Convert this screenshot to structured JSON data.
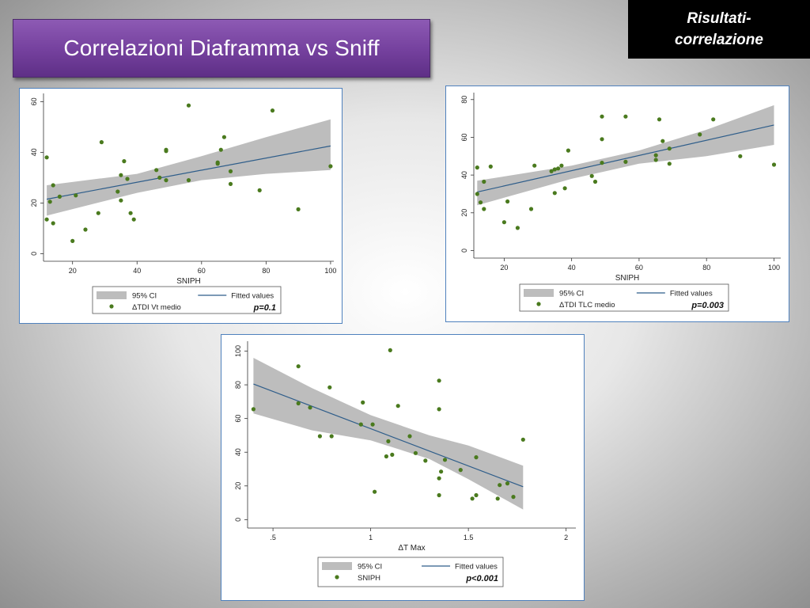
{
  "slide": {
    "title": "Correlazioni Diaframma vs Sniff",
    "corner_tag": "Risultati-correlazione"
  },
  "colors": {
    "point": "#4a7a1e",
    "fit_line": "#2e5d8a",
    "ci_band": "#bdbdbd",
    "panel_border": "#4f81bd",
    "title_banner": "#74409d"
  },
  "chart_data": [
    {
      "type": "scatter",
      "xlabel": "SNIPH",
      "ylabel": "",
      "xlim": [
        11,
        101
      ],
      "ylim": [
        -3,
        62
      ],
      "xticks": [
        20,
        40,
        60,
        80,
        100
      ],
      "yticks": [
        0,
        20,
        40,
        60
      ],
      "xtick_labels": [
        "20",
        "40",
        "60",
        "80",
        "100"
      ],
      "ytick_labels": [
        "0",
        "20",
        "40",
        "60"
      ],
      "grid": false,
      "legend": {
        "ci_label": "95% CI",
        "fit_label": "Fitted values",
        "point_label": "ΔTDI Vt medio",
        "pvalue": "p=0.1"
      },
      "fit": {
        "x": [
          12,
          100
        ],
        "y": [
          21.5,
          42.5
        ]
      },
      "ci_upper": [
        [
          12,
          27
        ],
        [
          40,
          31.5
        ],
        [
          60,
          38.5
        ],
        [
          80,
          46
        ],
        [
          100,
          53
        ]
      ],
      "ci_lower": [
        [
          12,
          15
        ],
        [
          40,
          24
        ],
        [
          60,
          29
        ],
        [
          80,
          31.5
        ],
        [
          100,
          33
        ]
      ],
      "points": [
        [
          12,
          38
        ],
        [
          12,
          13.5
        ],
        [
          13,
          20.5
        ],
        [
          14,
          27
        ],
        [
          14,
          12
        ],
        [
          16,
          22.5
        ],
        [
          20,
          5
        ],
        [
          21,
          23
        ],
        [
          24,
          9.5
        ],
        [
          28,
          16
        ],
        [
          29,
          44
        ],
        [
          34,
          24.5
        ],
        [
          35,
          31
        ],
        [
          35,
          21
        ],
        [
          36,
          36.5
        ],
        [
          37,
          29.5
        ],
        [
          38,
          16
        ],
        [
          39,
          13.5
        ],
        [
          46,
          33
        ],
        [
          47,
          30
        ],
        [
          49,
          29
        ],
        [
          49,
          40.5
        ],
        [
          49,
          41
        ],
        [
          56,
          58.5
        ],
        [
          56,
          29
        ],
        [
          65,
          36
        ],
        [
          65,
          35.5
        ],
        [
          66,
          41
        ],
        [
          67,
          46
        ],
        [
          69,
          32.5
        ],
        [
          69,
          27.5
        ],
        [
          78,
          25
        ],
        [
          82,
          56.5
        ],
        [
          90,
          17.5
        ],
        [
          100,
          34.5
        ]
      ]
    },
    {
      "type": "scatter",
      "xlabel": "SNIPH",
      "ylabel": "",
      "xlim": [
        11,
        102
      ],
      "ylim": [
        -4,
        82
      ],
      "xticks": [
        20,
        40,
        60,
        80,
        100
      ],
      "yticks": [
        0,
        20,
        40,
        60,
        80
      ],
      "xtick_labels": [
        "20",
        "40",
        "60",
        "80",
        "100"
      ],
      "ytick_labels": [
        "0",
        "20",
        "40",
        "60",
        "80"
      ],
      "grid": false,
      "legend": {
        "ci_label": "95% CI",
        "fit_label": "Fitted values",
        "point_label": "ΔTDI TLC medio",
        "pvalue": "p=0.003"
      },
      "fit": {
        "x": [
          12,
          100
        ],
        "y": [
          31,
          66.5
        ]
      },
      "ci_upper": [
        [
          12,
          37
        ],
        [
          40,
          45
        ],
        [
          60,
          53
        ],
        [
          80,
          64
        ],
        [
          100,
          77
        ]
      ],
      "ci_lower": [
        [
          12,
          24
        ],
        [
          40,
          38
        ],
        [
          60,
          46
        ],
        [
          80,
          50
        ],
        [
          100,
          56
        ]
      ],
      "points": [
        [
          12,
          44
        ],
        [
          12,
          30
        ],
        [
          13,
          25.5
        ],
        [
          14,
          22
        ],
        [
          14,
          36.5
        ],
        [
          16,
          44.5
        ],
        [
          20,
          15
        ],
        [
          21,
          26
        ],
        [
          24,
          12
        ],
        [
          28,
          22
        ],
        [
          29,
          45
        ],
        [
          34,
          42
        ],
        [
          35,
          43
        ],
        [
          35,
          30.5
        ],
        [
          36,
          43.5
        ],
        [
          37,
          45
        ],
        [
          38,
          33
        ],
        [
          39,
          53
        ],
        [
          46,
          39.5
        ],
        [
          47,
          36.5
        ],
        [
          49,
          46.5
        ],
        [
          49,
          59
        ],
        [
          49,
          71
        ],
        [
          56,
          47
        ],
        [
          56,
          71
        ],
        [
          65,
          50.5
        ],
        [
          65,
          48
        ],
        [
          66,
          69.5
        ],
        [
          67,
          58
        ],
        [
          69,
          54
        ],
        [
          69,
          46
        ],
        [
          78,
          61.5
        ],
        [
          82,
          69.5
        ],
        [
          90,
          50
        ],
        [
          100,
          45.5
        ]
      ]
    },
    {
      "type": "scatter",
      "xlabel": "ΔT Max",
      "ylabel": "",
      "xlim": [
        0.37,
        2.05
      ],
      "ylim": [
        -5,
        104
      ],
      "xticks": [
        0.5,
        1,
        1.5,
        2
      ],
      "yticks": [
        0,
        20,
        40,
        60,
        80,
        100
      ],
      "xtick_labels": [
        ".5",
        "1",
        "1.5",
        "2"
      ],
      "ytick_labels": [
        "0",
        "20",
        "40",
        "60",
        "80",
        "100"
      ],
      "grid": false,
      "legend": {
        "ci_label": "95% CI",
        "fit_label": "Fitted values",
        "point_label": "SNIPH",
        "pvalue": "p<0.001"
      },
      "fit": {
        "x": [
          0.4,
          1.78
        ],
        "y": [
          80.5,
          19.5
        ]
      },
      "ci_upper": [
        [
          0.4,
          96
        ],
        [
          0.7,
          78
        ],
        [
          1.0,
          62
        ],
        [
          1.3,
          50
        ],
        [
          1.5,
          44
        ],
        [
          1.78,
          32
        ]
      ],
      "ci_lower": [
        [
          0.4,
          63
        ],
        [
          0.7,
          53
        ],
        [
          1.0,
          47
        ],
        [
          1.3,
          36
        ],
        [
          1.5,
          24
        ],
        [
          1.78,
          6
        ]
      ],
      "points": [
        [
          0.4,
          65.5
        ],
        [
          0.63,
          91
        ],
        [
          0.63,
          69
        ],
        [
          0.69,
          66.5
        ],
        [
          0.74,
          49.5
        ],
        [
          0.79,
          78.5
        ],
        [
          0.8,
          49.5
        ],
        [
          0.95,
          56.5
        ],
        [
          0.96,
          69.5
        ],
        [
          1.01,
          56.5
        ],
        [
          1.02,
          16.5
        ],
        [
          1.08,
          37.5
        ],
        [
          1.09,
          46.5
        ],
        [
          1.1,
          100.5
        ],
        [
          1.11,
          38.5
        ],
        [
          1.14,
          67.5
        ],
        [
          1.2,
          49.5
        ],
        [
          1.23,
          39.5
        ],
        [
          1.28,
          35
        ],
        [
          1.35,
          82.5
        ],
        [
          1.35,
          65.5
        ],
        [
          1.35,
          24.5
        ],
        [
          1.35,
          14.5
        ],
        [
          1.36,
          28.5
        ],
        [
          1.38,
          35.5
        ],
        [
          1.46,
          29.5
        ],
        [
          1.52,
          12.5
        ],
        [
          1.54,
          37
        ],
        [
          1.54,
          14.5
        ],
        [
          1.65,
          12.5
        ],
        [
          1.66,
          20.5
        ],
        [
          1.7,
          21.5
        ],
        [
          1.73,
          13.5
        ],
        [
          1.78,
          47.5
        ]
      ]
    }
  ]
}
